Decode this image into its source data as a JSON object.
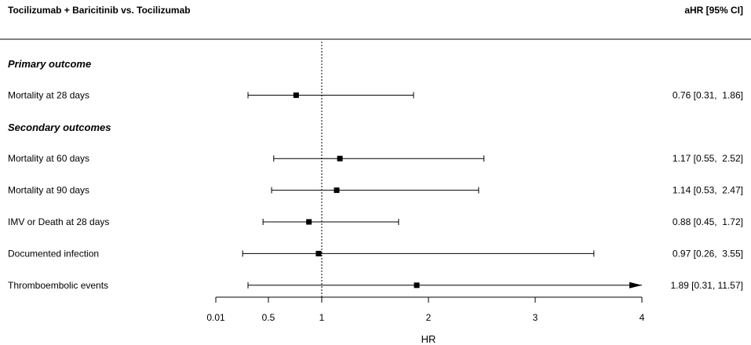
{
  "chart_data": {
    "type": "forest",
    "title": "Tocilizumab + Baricitinib vs. Tocilizumab",
    "estimate_header": "aHR [95% CI]",
    "xlabel": "HR",
    "reference_line": 1,
    "x_ticks": [
      "0.01",
      "0.5",
      "1",
      "2",
      "3",
      "4"
    ],
    "sections": [
      {
        "title": "Primary outcome",
        "rows": [
          {
            "label": "Mortality at 28 days",
            "hr": 0.76,
            "lo": 0.31,
            "hi": 1.86,
            "text": "0.76 [0.31,  1.86]"
          }
        ]
      },
      {
        "title": "Secondary outcomes",
        "rows": [
          {
            "label": "Mortality at 60 days",
            "hr": 1.17,
            "lo": 0.55,
            "hi": 2.52,
            "text": "1.17 [0.55,  2.52]"
          },
          {
            "label": "Mortality at 90 days",
            "hr": 1.14,
            "lo": 0.53,
            "hi": 2.47,
            "text": "1.14 [0.53,  2.47]"
          },
          {
            "label": "IMV or Death at 28 days",
            "hr": 0.88,
            "lo": 0.45,
            "hi": 1.72,
            "text": "0.88 [0.45,  1.72]"
          },
          {
            "label": "Documented infection",
            "hr": 0.97,
            "lo": 0.26,
            "hi": 3.55,
            "text": "0.97 [0.26,  3.55]"
          },
          {
            "label": "Thromboembolic events",
            "hr": 1.89,
            "lo": 0.31,
            "hi": 11.57,
            "text": "1.89 [0.31, 11.57]",
            "upper_truncated": true
          }
        ]
      }
    ]
  }
}
